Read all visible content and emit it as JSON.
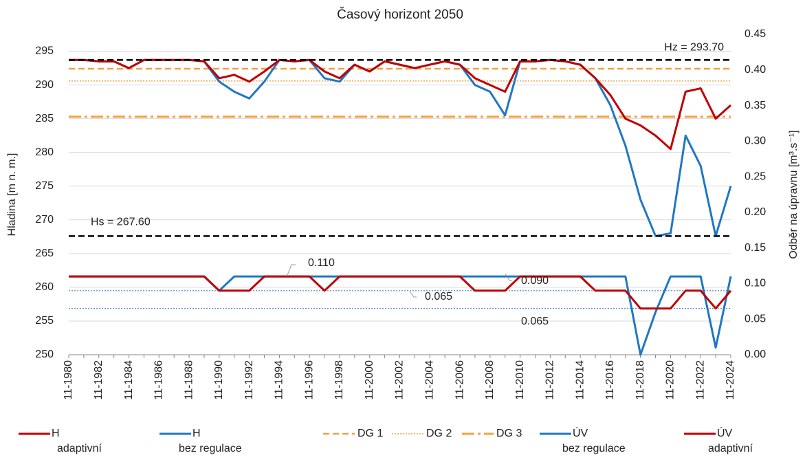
{
  "chart_data": {
    "type": "line",
    "title": "Časový horizont 2050",
    "y_label": "Hladina  [m n. m.]",
    "y2_label": "Odběr  na úpravnu  [m³.s⁻¹]",
    "categories": [
      "11-1980",
      null,
      "11-1982",
      null,
      "11-1984",
      null,
      "11-1986",
      null,
      "11-1988",
      null,
      "11-1990",
      null,
      "11-1992",
      null,
      "11-1994",
      null,
      "11-1996",
      null,
      "11-1998",
      null,
      "11-2000",
      null,
      "11-2002",
      null,
      "11-2004",
      null,
      "11-2006",
      null,
      "11-2008",
      null,
      "11-2010",
      null,
      "11-2012",
      null,
      "11-2014",
      null,
      "11-2016",
      null,
      "11-2018",
      null,
      "11-2020",
      null,
      "11-2022",
      null,
      "11-2024"
    ],
    "ylim": [
      250,
      297.5
    ],
    "yticks": [
      250,
      255,
      260,
      265,
      270,
      275,
      280,
      285,
      290,
      295
    ],
    "y2lim": [
      0,
      0.45
    ],
    "y2ticks": [
      {
        "value": 0,
        "label": "0.00"
      },
      0.05,
      {
        "value": 0.1,
        "label": "0.10"
      },
      0.15,
      {
        "value": 0.2,
        "label": "0.20"
      },
      0.25,
      {
        "value": 0.3,
        "label": "0.30"
      },
      0.35,
      {
        "value": 0.4,
        "label": "0.40"
      },
      0.45
    ],
    "grid": true,
    "series": [
      {
        "name": "H\nadaptivní",
        "color": "#c00000",
        "values": [
          293.7,
          293.7,
          293.5,
          293.5,
          292.5,
          293.7,
          293.7,
          293.7,
          293.7,
          293.5,
          291,
          291.5,
          290.5,
          292,
          293.7,
          293.5,
          293.7,
          292,
          291,
          293,
          292,
          293.5,
          293,
          292.5,
          293,
          293.5,
          293,
          291,
          290,
          289,
          293.5,
          293.5,
          293.7,
          293.5,
          293,
          291,
          288.5,
          285,
          284,
          282.5,
          280.5,
          289,
          289.5,
          285,
          287
        ]
      },
      {
        "name": "H\nbez regulace",
        "color": "#1f77c4",
        "values": [
          293.7,
          293.7,
          293.5,
          293.5,
          292.5,
          293.7,
          293.7,
          293.7,
          293.7,
          293.5,
          290.5,
          289,
          288,
          290.5,
          293.7,
          293.5,
          293.7,
          291,
          290.5,
          293,
          292,
          293.5,
          293,
          292.5,
          293,
          293.5,
          293,
          290,
          289,
          285.5,
          293.5,
          293.5,
          293.7,
          293.5,
          293,
          291,
          287,
          281,
          273,
          267.6,
          268,
          282.5,
          278,
          267.6,
          275
        ]
      },
      {
        "name": "ÚV\nbez regulace",
        "color": "#1f77c4",
        "axis": "y2",
        "values": [
          0.11,
          0.11,
          0.11,
          0.11,
          0.11,
          0.11,
          0.11,
          0.11,
          0.11,
          0.11,
          0.09,
          0.11,
          0.11,
          0.11,
          0.11,
          0.11,
          0.11,
          0.11,
          0.11,
          0.11,
          0.11,
          0.11,
          0.11,
          0.11,
          0.11,
          0.11,
          0.11,
          0.11,
          0.11,
          0.11,
          0.11,
          0.11,
          0.11,
          0.11,
          0.11,
          0.11,
          0.11,
          0.11,
          0,
          0.06,
          0.11,
          0.11,
          0.11,
          0.01,
          0.11
        ]
      },
      {
        "name": "ÚV\nadaptivní",
        "color": "#c00000",
        "axis": "y2",
        "values": [
          0.11,
          0.11,
          0.11,
          0.11,
          0.11,
          0.11,
          0.11,
          0.11,
          0.11,
          0.11,
          0.09,
          0.09,
          0.09,
          0.11,
          0.11,
          0.11,
          0.11,
          0.09,
          0.11,
          0.11,
          0.11,
          0.11,
          0.11,
          0.11,
          0.11,
          0.11,
          0.11,
          0.09,
          0.09,
          0.09,
          0.11,
          0.11,
          0.11,
          0.11,
          0.11,
          0.09,
          0.09,
          0.09,
          0.065,
          0.065,
          0.065,
          0.09,
          0.09,
          0.065,
          0.09
        ]
      }
    ],
    "reference_lines": [
      {
        "name": "DG 1",
        "value": 292.4,
        "color": "#f5a040",
        "style": "dashed"
      },
      {
        "name": "DG 2",
        "value": 290.6,
        "color": "#f5a040",
        "style": "dotted"
      },
      {
        "name": "DG 3",
        "value": 285.3,
        "color": "#f5a040",
        "style": "dashdot"
      }
    ],
    "limit_lines": [
      {
        "label": "Hz = 293.70",
        "value": 293.7,
        "color": "#000000"
      },
      {
        "label": "Hs = 267.60",
        "value": 267.6,
        "color": "#000000"
      }
    ],
    "y2_reference_lines": [
      {
        "value": 0.09,
        "color": "#4a7fd0"
      },
      {
        "value": 0.065,
        "color": "#4a7fd0"
      }
    ],
    "annotations": [
      "0.110",
      "0.090",
      "0.065",
      "0.065"
    ]
  }
}
